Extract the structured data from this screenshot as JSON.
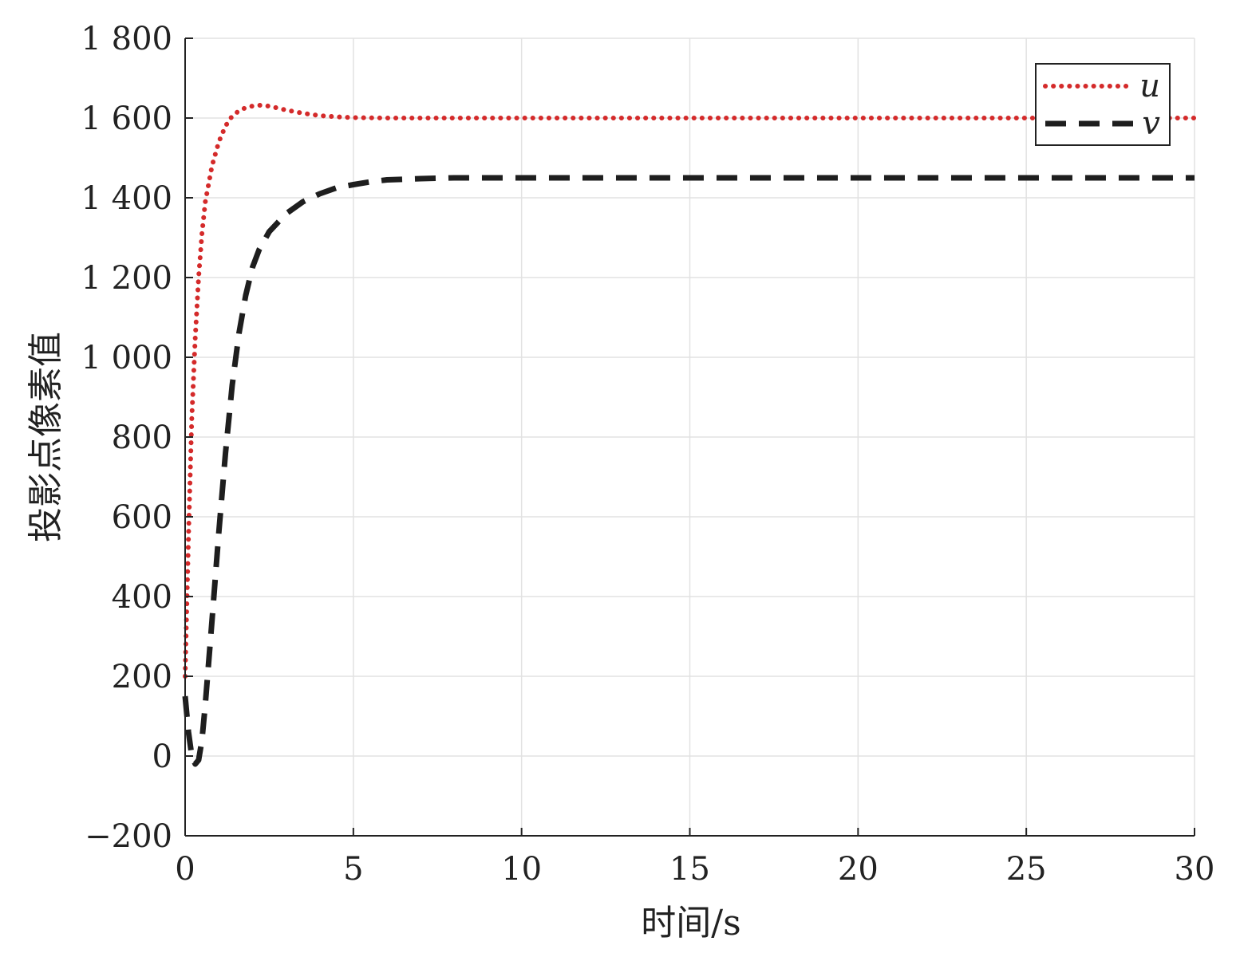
{
  "chart_data": {
    "type": "line",
    "title": "",
    "xlabel": "时间/s",
    "ylabel": "投影点像素值",
    "xlim": [
      0,
      30
    ],
    "ylim": [
      -200,
      1800
    ],
    "xticks": [
      0,
      5,
      10,
      15,
      20,
      25,
      30
    ],
    "xtick_labels": [
      "0",
      "5",
      "10",
      "15",
      "20",
      "25",
      "30"
    ],
    "yticks": [
      -200,
      0,
      200,
      400,
      600,
      800,
      1000,
      1200,
      1400,
      1600,
      1800
    ],
    "ytick_labels": [
      "−200",
      "0",
      "200",
      "400",
      "600",
      "800",
      "1 000",
      "1 200",
      "1 400",
      "1 600",
      "1 800"
    ],
    "grid": true,
    "legend_position": "top-right",
    "series": [
      {
        "name": "u",
        "color": "#d42a2a",
        "style": "dotted",
        "x": [
          0,
          0.1,
          0.2,
          0.3,
          0.4,
          0.5,
          0.6,
          0.8,
          1.0,
          1.2,
          1.4,
          1.6,
          1.8,
          2.0,
          2.2,
          2.4,
          2.6,
          3.0,
          3.5,
          4.0,
          4.5,
          5.0,
          6.0,
          8.0,
          10,
          15,
          20,
          25,
          30
        ],
        "y": [
          200,
          550,
          850,
          1050,
          1200,
          1310,
          1390,
          1480,
          1540,
          1580,
          1605,
          1618,
          1626,
          1630,
          1632,
          1631,
          1628,
          1620,
          1612,
          1606,
          1603,
          1601,
          1600,
          1600,
          1600,
          1600,
          1600,
          1600,
          1600
        ]
      },
      {
        "name": "v",
        "color": "#1e1e1e",
        "style": "dashed",
        "x": [
          0,
          0.1,
          0.2,
          0.3,
          0.4,
          0.5,
          0.6,
          0.8,
          1.0,
          1.2,
          1.4,
          1.6,
          1.8,
          2.0,
          2.2,
          2.5,
          3.0,
          3.5,
          4.0,
          4.5,
          5.0,
          5.5,
          6.0,
          7.0,
          8.0,
          10,
          15,
          20,
          25,
          30
        ],
        "y": [
          150,
          60,
          0,
          -20,
          -10,
          40,
          130,
          340,
          560,
          760,
          930,
          1060,
          1155,
          1225,
          1270,
          1315,
          1360,
          1390,
          1410,
          1425,
          1433,
          1440,
          1445,
          1448,
          1450,
          1450,
          1450,
          1450,
          1450,
          1450
        ]
      }
    ]
  }
}
